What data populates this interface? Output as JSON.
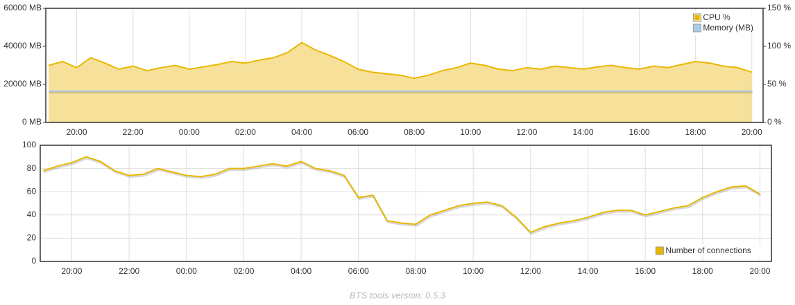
{
  "chart_data": [
    {
      "type": "line",
      "legend": "top-right",
      "grid": "x",
      "x": [
        19,
        19.5,
        20,
        20.5,
        21,
        21.5,
        22,
        22.5,
        23,
        23.5,
        24,
        24.5,
        25,
        25.5,
        26,
        26.5,
        27,
        27.5,
        28,
        28.5,
        29,
        29.5,
        30,
        30.5,
        31,
        31.5,
        32,
        32.5,
        33,
        33.5,
        34,
        34.5,
        35,
        35.5,
        36,
        36.5,
        37,
        37.5,
        38,
        38.5,
        39,
        39.5,
        40,
        40.5,
        41,
        41.5,
        42,
        42.5,
        43,
        43.5,
        44
      ],
      "xlim": [
        18.9,
        44.4
      ],
      "xticks": [
        {
          "value": 20,
          "label": "20:00"
        },
        {
          "value": 22,
          "label": "22:00"
        },
        {
          "value": 24,
          "label": "00:00"
        },
        {
          "value": 26,
          "label": "02:00"
        },
        {
          "value": 28,
          "label": "04:00"
        },
        {
          "value": 30,
          "label": "06:00"
        },
        {
          "value": 32,
          "label": "08:00"
        },
        {
          "value": 34,
          "label": "10:00"
        },
        {
          "value": 36,
          "label": "12:00"
        },
        {
          "value": 38,
          "label": "14:00"
        },
        {
          "value": 40,
          "label": "16:00"
        },
        {
          "value": 42,
          "label": "18:00"
        },
        {
          "value": 44,
          "label": "20:00"
        }
      ],
      "ylim": [
        0,
        60000
      ],
      "yticks": [
        {
          "value": 0,
          "label": "0 MB"
        },
        {
          "value": 20000,
          "label": "20000 MB"
        },
        {
          "value": 40000,
          "label": "40000 MB"
        },
        {
          "value": 60000,
          "label": "60000 MB"
        }
      ],
      "y2lim": [
        0,
        150
      ],
      "y2ticks": [
        {
          "value": 0,
          "label": "0 %"
        },
        {
          "value": 50,
          "label": "50 %"
        },
        {
          "value": 100,
          "label": "100 %"
        },
        {
          "value": 150,
          "label": "150 %"
        }
      ],
      "series": [
        {
          "name": "CPU %",
          "color": "#e8b800",
          "fill": "#f6e09a",
          "axis": "y2",
          "values": [
            75,
            80,
            72,
            85,
            78,
            70,
            74,
            68,
            72,
            75,
            70,
            73,
            76,
            80,
            78,
            82,
            85,
            92,
            105,
            95,
            88,
            80,
            70,
            66,
            64,
            62,
            58,
            62,
            68,
            72,
            78,
            75,
            70,
            68,
            72,
            70,
            74,
            72,
            70,
            73,
            75,
            72,
            70,
            74,
            72,
            76,
            80,
            78,
            74,
            72,
            66
          ]
        },
        {
          "name": "Memory (MB)",
          "color": "#a9cde8",
          "values": [
            16500,
            16500,
            16500,
            16500,
            16500,
            16500,
            16500,
            16500,
            16500,
            16500,
            16500,
            16500,
            16500,
            16500,
            16500,
            16500,
            16500,
            16500,
            16500,
            16500,
            16500,
            16500,
            16500,
            16500,
            16500,
            16500,
            16500,
            16500,
            16500,
            16500,
            16500,
            16500,
            16500,
            16500,
            16500,
            16500,
            16500,
            16500,
            16500,
            16500,
            16500,
            16500,
            16500,
            16500,
            16500,
            16500,
            16500,
            16500,
            16500,
            16500,
            16500
          ]
        }
      ]
    },
    {
      "type": "line",
      "legend": "bottom-right",
      "grid": "both",
      "x": [
        19,
        19.5,
        20,
        20.5,
        21,
        21.5,
        22,
        22.5,
        23,
        23.5,
        24,
        24.5,
        25,
        25.5,
        26,
        26.5,
        27,
        27.5,
        28,
        28.5,
        29,
        29.5,
        30,
        30.5,
        31,
        31.5,
        32,
        32.5,
        33,
        33.5,
        34,
        34.5,
        35,
        35.5,
        36,
        36.5,
        37,
        37.5,
        38,
        38.5,
        39,
        39.5,
        40,
        40.5,
        41,
        41.5,
        42,
        42.5,
        43,
        43.5,
        44
      ],
      "xlim": [
        18.9,
        44.4
      ],
      "xticks": [
        {
          "value": 20,
          "label": "20:00"
        },
        {
          "value": 22,
          "label": "22:00"
        },
        {
          "value": 24,
          "label": "00:00"
        },
        {
          "value": 26,
          "label": "02:00"
        },
        {
          "value": 28,
          "label": "04:00"
        },
        {
          "value": 30,
          "label": "06:00"
        },
        {
          "value": 32,
          "label": "08:00"
        },
        {
          "value": 34,
          "label": "10:00"
        },
        {
          "value": 36,
          "label": "12:00"
        },
        {
          "value": 38,
          "label": "14:00"
        },
        {
          "value": 40,
          "label": "16:00"
        },
        {
          "value": 42,
          "label": "18:00"
        },
        {
          "value": 44,
          "label": "20:00"
        }
      ],
      "ylim": [
        0,
        100
      ],
      "yticks": [
        0,
        20,
        40,
        60,
        80,
        100
      ],
      "series": [
        {
          "name": "Number of connections",
          "color": "#e8b800",
          "values": [
            78,
            82,
            85,
            90,
            86,
            78,
            74,
            75,
            80,
            77,
            74,
            73,
            75,
            80,
            80,
            82,
            84,
            82,
            86,
            80,
            78,
            74,
            55,
            57,
            35,
            33,
            32,
            40,
            44,
            48,
            50,
            51,
            48,
            38,
            25,
            30,
            33,
            35,
            38,
            42,
            44,
            44,
            40,
            43,
            46,
            48,
            55,
            60,
            64,
            65,
            58
          ]
        }
      ]
    }
  ],
  "footer": "BTS tools version: 0.5.3"
}
